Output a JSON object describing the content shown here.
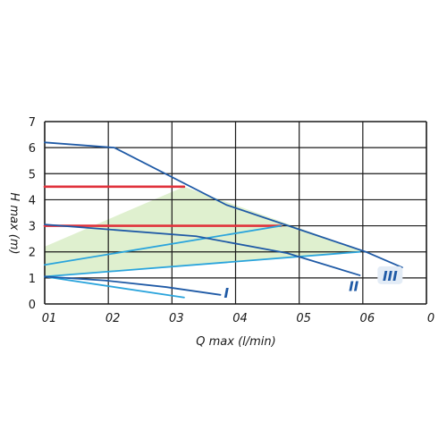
{
  "chart_data": {
    "type": "line",
    "title": "",
    "xlabel": "Q max (l/min)",
    "ylabel": "H max (m)",
    "xlim": [
      0,
      6.3
    ],
    "ylim": [
      0,
      7
    ],
    "grid": true,
    "legend": "none",
    "x_tick_labels": [
      "01",
      "02",
      "03",
      "04",
      "05",
      "06",
      "0"
    ],
    "y_tick_labels": [
      "0",
      "1",
      "2",
      "3",
      "4",
      "5",
      "6",
      "7"
    ],
    "colors": {
      "grid": "#1a1a1a",
      "dark_blue": "#1f5aa6",
      "light_blue": "#2aa4dc",
      "red": "#e0323c",
      "area": "#dff0cf"
    },
    "series": [
      {
        "name": "III",
        "style": "dark",
        "points": [
          [
            0,
            6.2
          ],
          [
            1.15,
            6.0
          ],
          [
            3.0,
            3.8
          ],
          [
            5.3,
            2.0
          ],
          [
            5.9,
            1.4
          ]
        ]
      },
      {
        "name": "II",
        "style": "dark",
        "points": [
          [
            0,
            3.05
          ],
          [
            2.5,
            2.6
          ],
          [
            4.0,
            1.95
          ],
          [
            5.2,
            1.1
          ]
        ]
      },
      {
        "name": "I",
        "style": "dark",
        "points": [
          [
            0,
            1.05
          ],
          [
            1.0,
            0.9
          ],
          [
            2.0,
            0.65
          ],
          [
            2.9,
            0.35
          ]
        ]
      },
      {
        "name": "",
        "style": "light",
        "points": [
          [
            0,
            1.5
          ],
          [
            3.9,
            3.0
          ]
        ]
      },
      {
        "name": "",
        "style": "light",
        "points": [
          [
            0,
            1.05
          ],
          [
            5.2,
            2.0
          ]
        ]
      },
      {
        "name": "",
        "style": "light",
        "points": [
          [
            0,
            1.05
          ],
          [
            2.3,
            0.25
          ]
        ]
      },
      {
        "name": "",
        "style": "red",
        "points": [
          [
            0,
            4.5
          ],
          [
            2.3,
            4.5
          ]
        ]
      },
      {
        "name": "",
        "style": "red",
        "points": [
          [
            0,
            3.0
          ],
          [
            3.9,
            3.0
          ]
        ]
      }
    ],
    "area": [
      [
        0,
        2.2
      ],
      [
        2.3,
        4.5
      ],
      [
        5.3,
        2.0
      ],
      [
        0,
        1.05
      ]
    ],
    "series_labels": [
      {
        "text": "I",
        "x": 3.0,
        "y": 0.35
      },
      {
        "text": "II",
        "x": 5.1,
        "y": 0.6
      },
      {
        "text": "III",
        "x": 5.7,
        "y": 1.0
      }
    ]
  }
}
